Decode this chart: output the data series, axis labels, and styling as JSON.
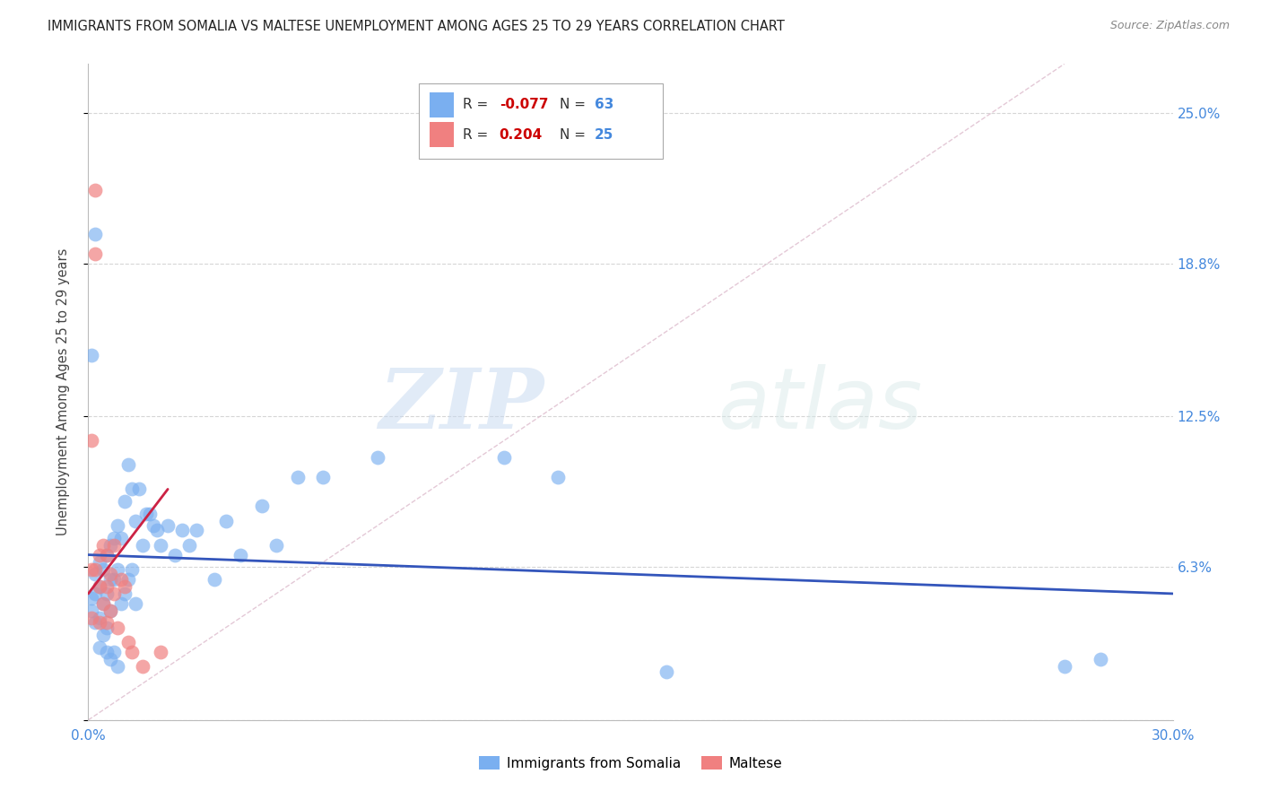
{
  "title": "IMMIGRANTS FROM SOMALIA VS MALTESE UNEMPLOYMENT AMONG AGES 25 TO 29 YEARS CORRELATION CHART",
  "source": "Source: ZipAtlas.com",
  "ylabel": "Unemployment Among Ages 25 to 29 years",
  "xlim": [
    0.0,
    0.3
  ],
  "ylim": [
    0.0,
    0.27
  ],
  "legend_R_blue": "-0.077",
  "legend_R_pink": "0.204",
  "legend_N_blue": "63",
  "legend_N_pink": "25",
  "blue_color": "#7aaff0",
  "pink_color": "#f08080",
  "blue_line_color": "#3355bb",
  "pink_line_color": "#cc2244",
  "blue_points_x": [
    0.001,
    0.001,
    0.002,
    0.002,
    0.002,
    0.003,
    0.003,
    0.003,
    0.003,
    0.004,
    0.004,
    0.004,
    0.005,
    0.005,
    0.005,
    0.005,
    0.006,
    0.006,
    0.006,
    0.006,
    0.007,
    0.007,
    0.007,
    0.008,
    0.008,
    0.008,
    0.009,
    0.009,
    0.01,
    0.01,
    0.011,
    0.011,
    0.012,
    0.012,
    0.013,
    0.013,
    0.014,
    0.015,
    0.016,
    0.017,
    0.018,
    0.019,
    0.02,
    0.022,
    0.024,
    0.026,
    0.028,
    0.03,
    0.035,
    0.038,
    0.042,
    0.048,
    0.052,
    0.058,
    0.065,
    0.08,
    0.115,
    0.13,
    0.16,
    0.27,
    0.001,
    0.002,
    0.28
  ],
  "blue_points_y": [
    0.05,
    0.045,
    0.06,
    0.052,
    0.04,
    0.065,
    0.055,
    0.042,
    0.03,
    0.062,
    0.048,
    0.035,
    0.068,
    0.052,
    0.038,
    0.028,
    0.072,
    0.058,
    0.045,
    0.025,
    0.075,
    0.058,
    0.028,
    0.08,
    0.062,
    0.022,
    0.075,
    0.048,
    0.09,
    0.052,
    0.105,
    0.058,
    0.095,
    0.062,
    0.082,
    0.048,
    0.095,
    0.072,
    0.085,
    0.085,
    0.08,
    0.078,
    0.072,
    0.08,
    0.068,
    0.078,
    0.072,
    0.078,
    0.058,
    0.082,
    0.068,
    0.088,
    0.072,
    0.1,
    0.1,
    0.108,
    0.108,
    0.1,
    0.02,
    0.022,
    0.15,
    0.2,
    0.025
  ],
  "pink_points_x": [
    0.001,
    0.001,
    0.001,
    0.002,
    0.002,
    0.002,
    0.003,
    0.003,
    0.003,
    0.004,
    0.004,
    0.005,
    0.005,
    0.005,
    0.006,
    0.006,
    0.007,
    0.007,
    0.008,
    0.009,
    0.01,
    0.011,
    0.012,
    0.015,
    0.02
  ],
  "pink_points_y": [
    0.115,
    0.062,
    0.042,
    0.218,
    0.192,
    0.062,
    0.068,
    0.055,
    0.04,
    0.072,
    0.048,
    0.068,
    0.055,
    0.04,
    0.06,
    0.045,
    0.072,
    0.052,
    0.038,
    0.058,
    0.055,
    0.032,
    0.028,
    0.022,
    0.028
  ],
  "blue_line_x": [
    0.0,
    0.3
  ],
  "blue_line_y": [
    0.068,
    0.052
  ],
  "pink_line_x": [
    0.0,
    0.022
  ],
  "pink_line_y": [
    0.052,
    0.095
  ],
  "ref_line_x": [
    0.0,
    0.27
  ],
  "ref_line_y": [
    0.0,
    0.27
  ],
  "ytick_positions": [
    0.0,
    0.063,
    0.125,
    0.188,
    0.25
  ],
  "ytick_labels": [
    "",
    "6.3%",
    "12.5%",
    "18.8%",
    "25.0%"
  ],
  "xtick_positions": [
    0.0,
    0.05,
    0.1,
    0.15,
    0.2,
    0.25,
    0.3
  ],
  "xtick_labels": [
    "0.0%",
    "",
    "",
    "",
    "",
    "",
    "30.0%"
  ],
  "watermark_zip": "ZIP",
  "watermark_atlas": "atlas"
}
